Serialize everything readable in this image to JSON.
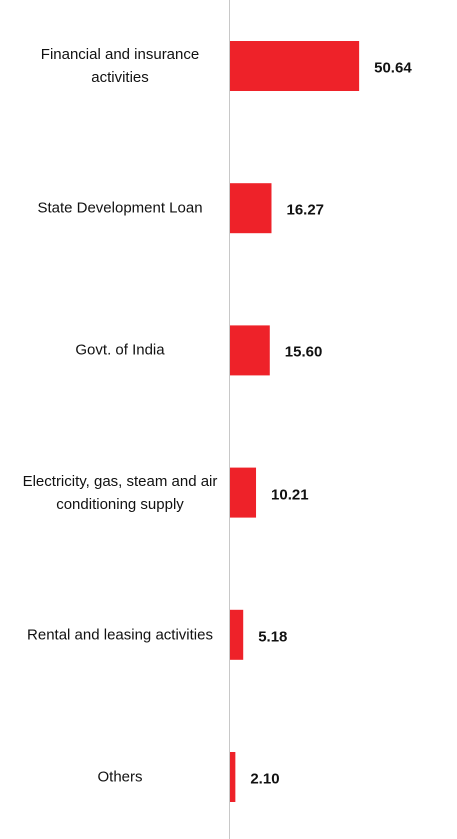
{
  "chart_data": {
    "type": "bar",
    "orientation": "horizontal",
    "categories": [
      "Financial and insurance activities",
      "State Development Loan",
      "Govt. of India",
      "Electricity, gas, steam and air conditioning supply",
      "Rental and leasing activities",
      "Others"
    ],
    "values": [
      50.64,
      16.27,
      15.6,
      10.21,
      5.18,
      2.1
    ],
    "value_labels": [
      "50.64",
      "16.27",
      "15.60",
      "10.21",
      "5.18",
      "2.10"
    ],
    "color": "#ee2229"
  }
}
